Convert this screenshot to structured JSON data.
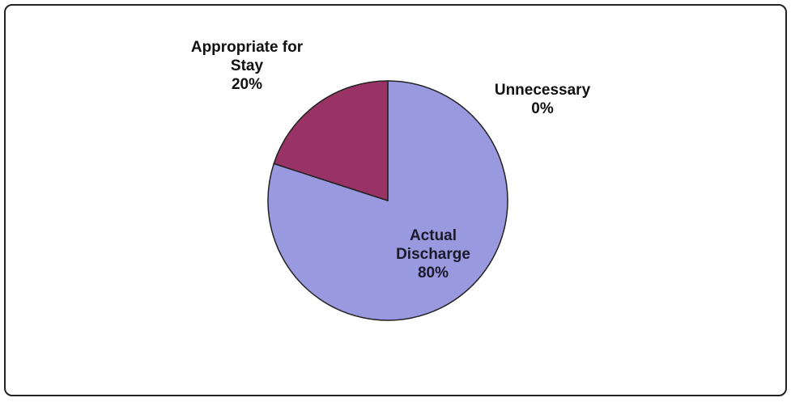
{
  "chart_data": {
    "type": "pie",
    "slices": [
      {
        "label_lines": [
          "Unnecessary",
          "0%"
        ],
        "category": "Unnecessary",
        "value": 0,
        "color": "#6666cc"
      },
      {
        "label_lines": [
          "Actual",
          "Discharge",
          "80%"
        ],
        "category": "Actual Discharge",
        "value": 80,
        "color": "#9999e0"
      },
      {
        "label_lines": [
          "Appropriate for",
          "Stay",
          "20%"
        ],
        "category": "Appropriate for Stay",
        "value": 20,
        "color": "#993366"
      }
    ],
    "start_angle_deg": 0,
    "direction": "clockwise"
  }
}
